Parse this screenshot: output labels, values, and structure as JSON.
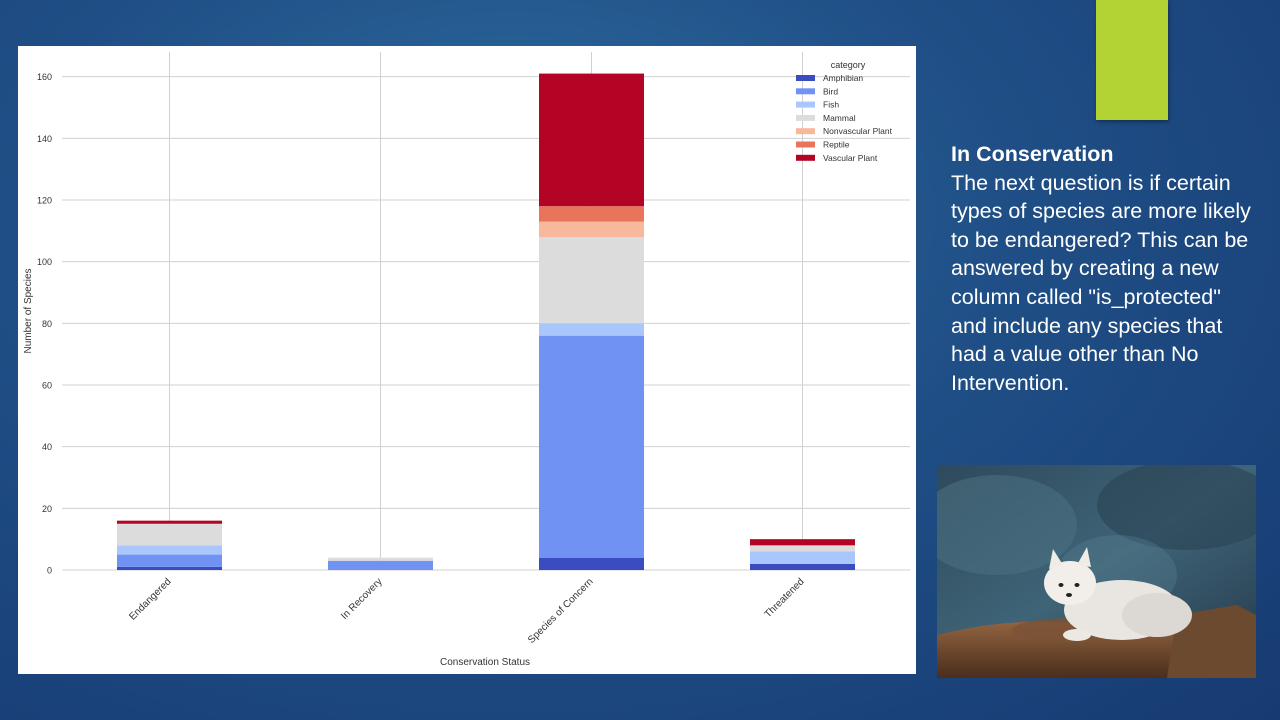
{
  "slide": {
    "heading": "In Conservation",
    "body": "The next question is if certain types of species are more likely to be endangered? This can be answered by creating a new column called \"is_protected\" and include any species that had a value other than No Intervention.",
    "accent_color": "#b3d334",
    "photo_icon": "arctic-fox-photo"
  },
  "chart_data": {
    "type": "bar",
    "stacked": true,
    "xlabel": "Conservation Status",
    "ylabel": "Number of Species",
    "ylim": [
      0,
      168
    ],
    "yticks": [
      0,
      20,
      40,
      60,
      80,
      100,
      120,
      140,
      160
    ],
    "grid": true,
    "legend_title": "category",
    "legend_position": "top-right",
    "categories": [
      "Endangered",
      "In Recovery",
      "Species of Concern",
      "Threatened"
    ],
    "series": [
      {
        "name": "Amphibian",
        "color": "#3b4cc0",
        "values": [
          1,
          0,
          4,
          2
        ]
      },
      {
        "name": "Bird",
        "color": "#7093f3",
        "values": [
          4,
          3,
          72,
          0
        ]
      },
      {
        "name": "Fish",
        "color": "#aac7fd",
        "values": [
          3,
          0,
          4,
          4
        ]
      },
      {
        "name": "Mammal",
        "color": "#dddcdc",
        "values": [
          7,
          1,
          28,
          2
        ]
      },
      {
        "name": "Nonvascular Plant",
        "color": "#f7b89c",
        "values": [
          0,
          0,
          5,
          0
        ]
      },
      {
        "name": "Reptile",
        "color": "#e7745b",
        "values": [
          0,
          0,
          5,
          0
        ]
      },
      {
        "name": "Vascular Plant",
        "color": "#b40426",
        "values": [
          1,
          0,
          43,
          2
        ]
      }
    ]
  }
}
